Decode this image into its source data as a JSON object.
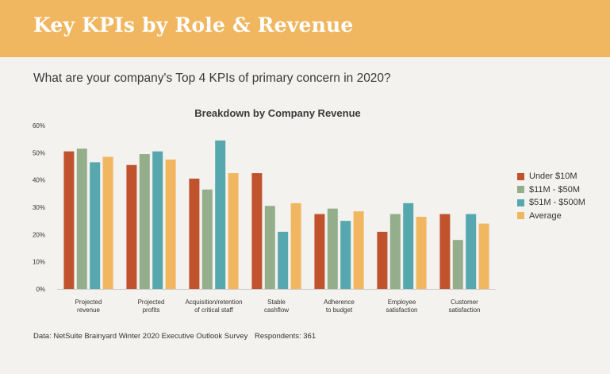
{
  "header": {
    "title": "Key KPIs by Role & Revenue"
  },
  "question": "What are your company's Top 4 KPIs of primary concern in 2020?",
  "footer": {
    "source": "Data: NetSuite Brainyard Winter 2020 Executive Outlook Survey",
    "respondents": "Respondents: 361"
  },
  "colors": {
    "header_bg": "#f1b760",
    "background": "#f3f2ef"
  },
  "chart_data": {
    "type": "bar",
    "title": "Breakdown by Company Revenue",
    "xlabel": "",
    "ylabel": "",
    "ylim": [
      0,
      60
    ],
    "yticks": [
      "0%",
      "10%",
      "20%",
      "30%",
      "40%",
      "50%",
      "60%"
    ],
    "ytick_values": [
      0,
      10,
      20,
      30,
      40,
      50,
      60
    ],
    "grid": false,
    "legend_position": "right",
    "categories": [
      [
        "Projected",
        "revenue"
      ],
      [
        "Projected",
        "profits"
      ],
      [
        "Acquisition/retention",
        "of critical staff"
      ],
      [
        "Stable",
        "cashflow"
      ],
      [
        "Adherence",
        "to budget"
      ],
      [
        "Employee",
        "satisfaction"
      ],
      [
        "Customer",
        "satisfaction"
      ]
    ],
    "series": [
      {
        "name": "Under $10M",
        "color": "#c0532e",
        "values": [
          50.5,
          45.5,
          40.5,
          42.5,
          27.5,
          21,
          27.5
        ]
      },
      {
        "name": "$11M - $50M",
        "color": "#94ae8c",
        "values": [
          51.5,
          49.5,
          36.5,
          30.5,
          29.5,
          27.5,
          18
        ]
      },
      {
        "name": "$51M - $500M",
        "color": "#57a8ae",
        "values": [
          46.5,
          50.5,
          54.5,
          21,
          25,
          31.5,
          27.5
        ]
      },
      {
        "name": "Average",
        "color": "#f1b760",
        "values": [
          48.5,
          47.5,
          42.5,
          31.5,
          28.5,
          26.5,
          24
        ]
      }
    ]
  }
}
